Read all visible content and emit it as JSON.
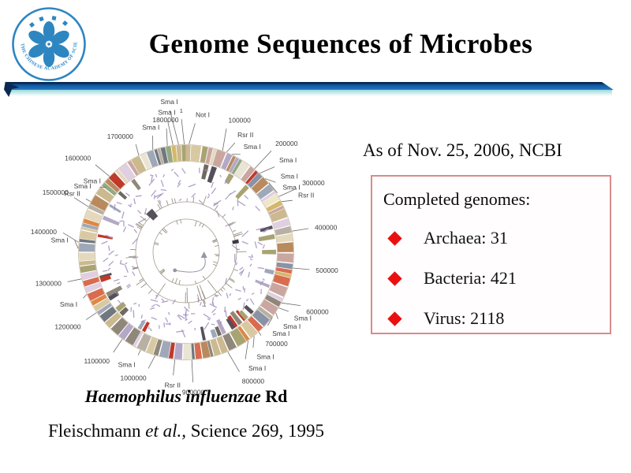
{
  "slide": {
    "title": "Genome Sequences of Microbes",
    "date_line": "As of  Nov. 25, 2006, NCBI",
    "stats_box": {
      "heading": "Completed genomes:",
      "items": [
        "Archaea: 31",
        "Bacteria: 421",
        "Virus: 2118"
      ],
      "border_color": "#d98c8c",
      "bullet_color": "#ea1010"
    },
    "caption": {
      "species": "Haemophilus influenzae",
      "strain": " Rd"
    },
    "reference": {
      "pre": "Fleischmann ",
      "etal": "et al.,",
      "post": " Science 269, 1995"
    },
    "logo": {
      "ring_text": "THE CHINESE ACADEMY OF SCIENCES",
      "color": "#2e86c1"
    },
    "divider": {
      "main": "#1565ae",
      "dark": "#092950",
      "fade": "#9cd8da"
    }
  },
  "genome_map": {
    "organism": "Haemophilus influenzae Rd",
    "genome_length_bp": 1830137,
    "scatter_color": "#a391bf",
    "palette": [
      "#d9c9a3",
      "#cbb98f",
      "#e4d9bd",
      "#b8b0a4",
      "#8f8779",
      "#c0392b",
      "#d96c4f",
      "#a8a372",
      "#9fa8b8",
      "#b3a8c6",
      "#8a92a6",
      "#d4b86a",
      "#e9e4d4",
      "#94a884",
      "#b98a5e",
      "#c9cdd4",
      "#70787f",
      "#e0cfe0",
      "#caa6a0",
      "#f0e6c8",
      "#dd8844"
    ],
    "stub_palette": [
      "#8f8779",
      "#6f6a60",
      "#c0392b",
      "#9fa8b8",
      "#b3a8c6",
      "#a8a372",
      "#55505a"
    ],
    "labels": [
      {
        "t": "Sma I",
        "a": 356,
        "la": 353.5,
        "r": 189
      },
      {
        "t": "Sma I",
        "a": 353,
        "la": 352,
        "r": 176
      },
      {
        "t": "1",
        "a": 359,
        "la": 358,
        "r": 177
      },
      {
        "t": "Not I",
        "a": 1.5,
        "la": 4,
        "r": 172,
        "anc": "start"
      },
      {
        "t": "1800000",
        "a": 350,
        "la": 351,
        "r": 167,
        "num": 1
      },
      {
        "t": "Sma I",
        "a": 342,
        "la": 344,
        "r": 162
      },
      {
        "t": "1700000",
        "a": 334,
        "la": 335,
        "r": 159,
        "num": 1
      },
      {
        "t": "100000",
        "a": 19.7,
        "la": 18,
        "r": 173,
        "num": 1
      },
      {
        "t": "Rsr II",
        "a": 22,
        "la": 24,
        "r": 160
      },
      {
        "t": "Sma I",
        "a": 25,
        "la": 29,
        "r": 150
      },
      {
        "t": "200000",
        "a": 39.3,
        "la": 40,
        "r": 176,
        "num": 1
      },
      {
        "t": "Sma I",
        "a": 43,
        "la": 46,
        "r": 164
      },
      {
        "t": "Sma I",
        "a": 47,
        "la": 52,
        "r": 152
      },
      {
        "t": "Sma I",
        "a": 50,
        "la": 57,
        "r": 146
      },
      {
        "t": "300000",
        "a": 59,
        "la": 60,
        "r": 170,
        "num": 1
      },
      {
        "t": "Rsr II",
        "a": 62,
        "la": 64,
        "r": 158
      },
      {
        "t": "400000",
        "a": 78.7,
        "la": 79,
        "r": 166,
        "num": 1
      },
      {
        "t": "500000",
        "a": 98.4,
        "la": 98,
        "r": 166,
        "num": 1
      },
      {
        "t": "600000",
        "a": 118,
        "la": 115,
        "r": 168,
        "num": 1
      },
      {
        "t": "Sma I",
        "a": 121,
        "la": 120,
        "r": 158
      },
      {
        "t": "Sma I",
        "a": 124,
        "la": 126,
        "r": 152
      },
      {
        "t": "Sma I",
        "a": 127,
        "la": 132,
        "r": 147
      },
      {
        "t": "700000",
        "a": 137.7,
        "la": 138,
        "r": 150,
        "num": 1
      },
      {
        "t": "Sma I",
        "a": 141,
        "la": 145,
        "r": 156
      },
      {
        "t": "Sma I",
        "a": 145,
        "la": 151,
        "r": 163
      },
      {
        "t": "800000",
        "a": 157.3,
        "la": 156,
        "r": 174,
        "num": 1
      },
      {
        "t": "900000",
        "a": 177,
        "la": 177,
        "r": 173,
        "num": 1
      },
      {
        "t": "Rsr II",
        "a": 186,
        "la": 186,
        "r": 165
      },
      {
        "t": "1000000",
        "a": 196.7,
        "la": 198,
        "r": 163,
        "num": 1
      },
      {
        "t": "Sma I",
        "a": 205,
        "la": 205,
        "r": 152
      },
      {
        "t": "1100000",
        "a": 216.3,
        "la": 216,
        "r": 165,
        "num": 1
      },
      {
        "t": "1200000",
        "a": 236,
        "la": 236,
        "r": 161,
        "num": 1
      },
      {
        "t": "Sma I",
        "a": 247,
        "la": 246,
        "r": 151
      },
      {
        "t": "1300000",
        "a": 255.7,
        "la": 256,
        "r": 163,
        "num": 1
      },
      {
        "t": "Sma I",
        "a": 272,
        "la": 276,
        "r": 150
      },
      {
        "t": "1400000",
        "a": 275.3,
        "la": 279,
        "r": 166,
        "num": 1
      },
      {
        "t": "1500000",
        "a": 295,
        "la": 296,
        "r": 166,
        "num": 1
      },
      {
        "t": "Rsr II",
        "a": 298,
        "la": 298,
        "r": 152
      },
      {
        "t": "Sma I",
        "a": 304,
        "la": 304,
        "r": 145
      },
      {
        "t": "Sma I",
        "a": 307,
        "la": 309,
        "r": 139
      },
      {
        "t": "1600000",
        "a": 314.7,
        "la": 314,
        "r": 168,
        "num": 1
      }
    ]
  }
}
